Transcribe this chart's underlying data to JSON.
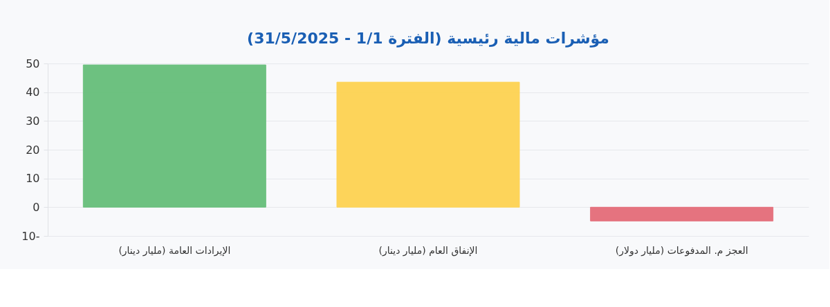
{
  "chart_data": {
    "type": "bar",
    "title": "مؤشرات مالية رئيسية (الفترة 1/1 - 31/5/2025)",
    "categories": [
      "الإيرادات العامة (مليار دينار)",
      "الإنفاق العام (مليار دينار)",
      "العجز م. المدفوعات (مليار دولار)"
    ],
    "values": [
      49.5,
      43.5,
      -4.8
    ],
    "colors": [
      "#66bf7a",
      "#fed352",
      "#e46c79"
    ],
    "ylim": [
      -10,
      50
    ],
    "yticks": [
      {
        "value": -10,
        "label": "10-"
      },
      0,
      10,
      20,
      30,
      40,
      50
    ],
    "grid": "y"
  }
}
